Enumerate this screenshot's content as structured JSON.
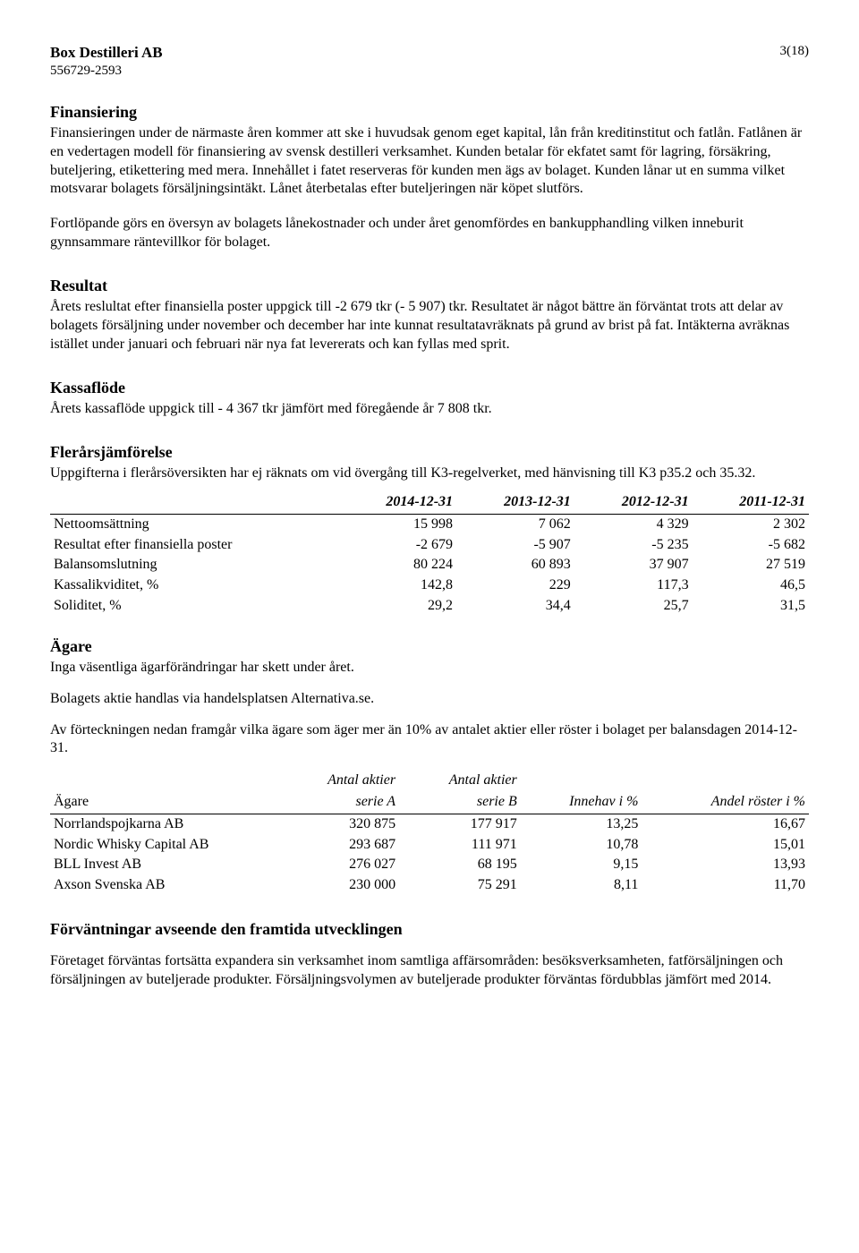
{
  "header": {
    "company": "Box Destilleri AB",
    "orgnr": "556729-2593",
    "page": "3(18)"
  },
  "sections": {
    "finansiering": {
      "title": "Finansiering",
      "p1": "Finansieringen under de närmaste åren kommer att ske i huvudsak genom eget kapital, lån från kreditinstitut och fatlån. Fatlånen är en vedertagen modell för finansiering av svensk destilleri verksamhet. Kunden betalar för ekfatet samt för lagring, försäkring, buteljering, etikettering med mera. Innehållet i fatet reserveras för kunden men ägs av bolaget. Kunden lånar ut en summa vilket motsvarar bolagets försäljningsintäkt. Lånet återbetalas efter buteljeringen när köpet slutförs.",
      "p2": "Fortlöpande görs en översyn av bolagets lånekostnader och under året genomfördes en bankupphandling vilken inneburit gynnsammare räntevillkor för bolaget."
    },
    "resultat": {
      "title": "Resultat",
      "p1": "Årets reslultat efter finansiella poster uppgick till -2 679 tkr (- 5 907)  tkr. Resultatet är något bättre än förväntat trots att delar av bolagets försäljning under november och december har inte kunnat resultatavräknats på grund av brist på fat. Intäkterna avräknas istället under januari och februari när nya fat levererats och kan fyllas med sprit."
    },
    "kassaflode": {
      "title": "Kassaflöde",
      "p1": "Årets kassaflöde uppgick till - 4 367 tkr jämfört med föregående år 7 808 tkr."
    },
    "flerars": {
      "title": "Flerårsjämförelse",
      "p1": "Uppgifterna i flerårsöversikten har ej räknats om vid övergång till K3-regelverket, med hänvisning till K3 p35.2 och 35.32.",
      "columns": [
        "",
        "2014-12-31",
        "2013-12-31",
        "2012-12-31",
        "2011-12-31"
      ],
      "rows": [
        [
          "Nettoomsättning",
          "15 998",
          "7 062",
          "4 329",
          "2 302"
        ],
        [
          "Resultat efter finansiella poster",
          "-2 679",
          "-5 907",
          "-5 235",
          "-5 682"
        ],
        [
          "Balansomslutning",
          "80 224",
          "60 893",
          "37 907",
          "27 519"
        ],
        [
          "Kassalikviditet, %",
          "142,8",
          "229",
          "117,3",
          "46,5"
        ],
        [
          "Soliditet, %",
          "29,2",
          "34,4",
          "25,7",
          "31,5"
        ]
      ]
    },
    "agare": {
      "title": "Ägare",
      "p1": "Inga väsentliga ägarförändringar har skett under året.",
      "p2": "Bolagets aktie handlas via handelsplatsen Alternativa.se.",
      "p3": "Av förteckningen nedan framgår vilka ägare som äger mer än 10% av antalet aktier eller röster i bolaget per balansdagen 2014-12-31.",
      "head_top": [
        "",
        "Antal aktier",
        "Antal aktier",
        "",
        ""
      ],
      "head_bot": [
        "Ägare",
        "serie A",
        "serie B",
        "Innehav i %",
        "Andel röster i %"
      ],
      "rows": [
        [
          "Norrlandspojkarna AB",
          "320 875",
          "177 917",
          "13,25",
          "16,67"
        ],
        [
          "Nordic Whisky Capital AB",
          "293 687",
          "111 971",
          "10,78",
          "15,01"
        ],
        [
          "BLL Invest AB",
          "276 027",
          "68 195",
          "9,15",
          "13,93"
        ],
        [
          "Axson Svenska AB",
          "230 000",
          "75 291",
          "8,11",
          "11,70"
        ]
      ]
    },
    "forvant": {
      "title": "Förväntningar avseende den framtida utvecklingen",
      "p1": "Företaget förväntas fortsätta expandera sin verksamhet inom samtliga affärsområden: besöksverksamheten, fatförsäljningen och försäljningen av buteljerade produkter. Försäljningsvolymen av buteljerade produkter förväntas fördubblas jämfört med 2014."
    }
  }
}
